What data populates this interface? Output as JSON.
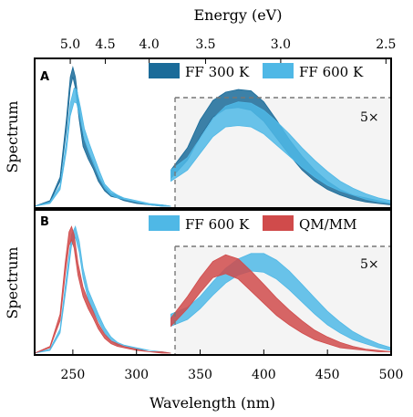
{
  "chart_data": [
    {
      "panel": "A",
      "type": "area",
      "top_axis": {
        "label": "Energy (eV)",
        "ticks": [
          "5.0",
          "4.5",
          "4.0",
          "3.5",
          "3.0",
          "2.5"
        ],
        "tick_values_ev": [
          5.0,
          4.5,
          4.0,
          3.5,
          3.0,
          2.5
        ]
      },
      "ylabel": "Spectrum",
      "xlim": [
        220,
        500
      ],
      "ylim": [
        0,
        1.05
      ],
      "split_at": 327,
      "magnification_label": "5×",
      "legend": {
        "placement": "top-right",
        "entries": [
          "FF 300 K",
          "FF 600 K"
        ]
      },
      "series": [
        {
          "name": "FF 300 K",
          "color": "#1a6b99",
          "absorption": {
            "x": [
              220,
              232,
              240,
              245,
              248,
              250,
              252,
              255,
              258,
              262,
              266,
              270,
              275,
              280,
              285,
              290,
              300,
              310,
              320,
              327
            ],
            "lower": [
              0.0,
              0.03,
              0.18,
              0.55,
              0.85,
              0.93,
              0.85,
              0.62,
              0.43,
              0.34,
              0.27,
              0.18,
              0.11,
              0.07,
              0.06,
              0.04,
              0.02,
              0.01,
              0.0,
              0.0
            ],
            "upper": [
              0.0,
              0.04,
              0.21,
              0.63,
              0.93,
              1.0,
              0.93,
              0.71,
              0.5,
              0.4,
              0.32,
              0.22,
              0.14,
              0.09,
              0.08,
              0.05,
              0.03,
              0.01,
              0.01,
              0.0
            ]
          },
          "emission": {
            "x": [
              327,
              340,
              350,
              360,
              370,
              380,
              390,
              400,
              410,
              420,
              430,
              440,
              450,
              460,
              470,
              480,
              490,
              500
            ],
            "lower": [
              0.2,
              0.33,
              0.5,
              0.64,
              0.7,
              0.71,
              0.69,
              0.61,
              0.49,
              0.37,
              0.26,
              0.18,
              0.12,
              0.08,
              0.05,
              0.03,
              0.02,
              0.01
            ],
            "upper": [
              0.26,
              0.42,
              0.62,
              0.76,
              0.82,
              0.84,
              0.83,
              0.75,
              0.62,
              0.48,
              0.36,
              0.26,
              0.18,
              0.12,
              0.08,
              0.06,
              0.04,
              0.02
            ]
          }
        },
        {
          "name": "FF 600 K",
          "color": "#4fb8e6",
          "absorption": {
            "x": [
              220,
              232,
              240,
              245,
              248,
              251,
              253,
              256,
              259,
              263,
              267,
              271,
              275,
              280,
              285,
              290,
              300,
              310,
              320,
              327
            ],
            "lower": [
              0.0,
              0.02,
              0.12,
              0.4,
              0.65,
              0.75,
              0.74,
              0.62,
              0.48,
              0.38,
              0.29,
              0.2,
              0.13,
              0.08,
              0.06,
              0.05,
              0.03,
              0.01,
              0.0,
              0.0
            ],
            "upper": [
              0.0,
              0.03,
              0.15,
              0.47,
              0.74,
              0.85,
              0.84,
              0.71,
              0.56,
              0.45,
              0.35,
              0.25,
              0.16,
              0.11,
              0.08,
              0.06,
              0.04,
              0.02,
              0.01,
              0.0
            ]
          },
          "emission": {
            "x": [
              327,
              340,
              350,
              360,
              370,
              380,
              390,
              400,
              410,
              420,
              430,
              440,
              450,
              460,
              470,
              480,
              490,
              500
            ],
            "lower": [
              0.18,
              0.26,
              0.38,
              0.5,
              0.57,
              0.58,
              0.57,
              0.52,
              0.44,
              0.36,
              0.28,
              0.21,
              0.15,
              0.11,
              0.08,
              0.05,
              0.03,
              0.02
            ],
            "upper": [
              0.26,
              0.35,
              0.49,
              0.63,
              0.72,
              0.75,
              0.74,
              0.69,
              0.61,
              0.52,
              0.42,
              0.33,
              0.25,
              0.18,
              0.13,
              0.09,
              0.06,
              0.04
            ]
          }
        }
      ]
    },
    {
      "panel": "B",
      "type": "area",
      "xlabel": "Wavelength (nm)",
      "xticks": [
        250,
        300,
        350,
        400,
        450,
        500
      ],
      "ylabel": "Spectrum",
      "xlim": [
        220,
        500
      ],
      "ylim": [
        0,
        1.05
      ],
      "split_at": 327,
      "magnification_label": "5×",
      "legend": {
        "placement": "top-right",
        "entries": [
          "FF 600 K",
          "QM/MM"
        ]
      },
      "series": [
        {
          "name": "FF 600 K",
          "color": "#4fb8e6",
          "absorption": {
            "x": [
              220,
              232,
              240,
              245,
              249,
              252,
              255,
              258,
              262,
              266,
              270,
              275,
              280,
              285,
              290,
              300,
              310,
              320,
              327
            ],
            "lower": [
              0.0,
              0.02,
              0.15,
              0.5,
              0.8,
              0.86,
              0.75,
              0.56,
              0.4,
              0.32,
              0.24,
              0.15,
              0.09,
              0.06,
              0.05,
              0.03,
              0.02,
              0.01,
              0.0
            ],
            "upper": [
              0.0,
              0.03,
              0.18,
              0.57,
              0.88,
              0.94,
              0.83,
              0.63,
              0.47,
              0.38,
              0.29,
              0.19,
              0.12,
              0.08,
              0.06,
              0.04,
              0.02,
              0.01,
              0.0
            ]
          },
          "emission": {
            "x": [
              327,
              340,
              350,
              360,
              370,
              380,
              390,
              400,
              410,
              420,
              430,
              440,
              450,
              460,
              470,
              480,
              490,
              500
            ],
            "lower": [
              0.2,
              0.25,
              0.33,
              0.43,
              0.52,
              0.58,
              0.61,
              0.6,
              0.55,
              0.47,
              0.38,
              0.29,
              0.21,
              0.15,
              0.1,
              0.07,
              0.04,
              0.02
            ],
            "upper": [
              0.29,
              0.34,
              0.42,
              0.53,
              0.63,
              0.7,
              0.74,
              0.74,
              0.69,
              0.61,
              0.51,
              0.41,
              0.31,
              0.23,
              0.16,
              0.11,
              0.07,
              0.04
            ]
          }
        },
        {
          "name": "QM/MM",
          "color": "#d04b4b",
          "absorption": {
            "x": [
              220,
              232,
              240,
              244,
              247,
              249,
              251,
              254,
              258,
              262,
              266,
              270,
              275,
              280,
              285,
              290,
              300,
              310,
              320,
              327
            ],
            "lower": [
              0.0,
              0.04,
              0.24,
              0.58,
              0.8,
              0.84,
              0.78,
              0.58,
              0.42,
              0.33,
              0.26,
              0.18,
              0.11,
              0.07,
              0.05,
              0.04,
              0.02,
              0.01,
              0.0,
              0.0
            ],
            "upper": [
              0.0,
              0.05,
              0.29,
              0.67,
              0.9,
              0.94,
              0.88,
              0.67,
              0.49,
              0.39,
              0.31,
              0.22,
              0.14,
              0.09,
              0.07,
              0.05,
              0.03,
              0.01,
              0.01,
              0.0
            ]
          },
          "emission": {
            "x": [
              327,
              340,
              350,
              360,
              370,
              380,
              390,
              400,
              410,
              420,
              430,
              440,
              450,
              460,
              470,
              480,
              490,
              500
            ],
            "lower": [
              0.2,
              0.33,
              0.45,
              0.56,
              0.59,
              0.55,
              0.46,
              0.37,
              0.28,
              0.21,
              0.15,
              0.1,
              0.07,
              0.04,
              0.03,
              0.02,
              0.01,
              0.01
            ],
            "upper": [
              0.26,
              0.42,
              0.56,
              0.68,
              0.73,
              0.7,
              0.61,
              0.51,
              0.41,
              0.32,
              0.24,
              0.17,
              0.12,
              0.08,
              0.05,
              0.03,
              0.02,
              0.01
            ]
          }
        }
      ]
    }
  ]
}
